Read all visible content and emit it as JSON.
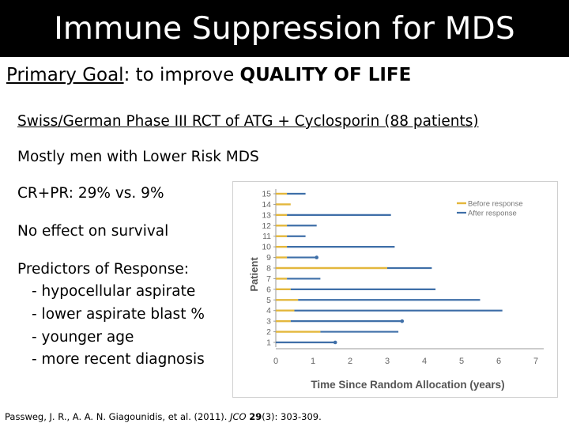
{
  "slide": {
    "title": "Immune Suppression for MDS",
    "goal_label": "Primary Goal",
    "goal_text": ": to improve ",
    "goal_emphasis": "QUALITY OF LIFE",
    "bullets": [
      "Swiss/German Phase III RCT of ATG + Cyclosporin (88 patients)",
      "Mostly men with Lower Risk MDS",
      "CR+PR: 29% vs. 9%",
      "No effect on survival",
      "Predictors of Response:"
    ],
    "sub_bullets": [
      "- hypocellular aspirate",
      "- lower aspirate blast %",
      "- younger age",
      "- more recent diagnosis"
    ],
    "citation": {
      "authors": "Passweg, J. R., A. A. N. Giagounidis, et al. (2011). ",
      "journal": "JCO",
      "volume": "29",
      "pages": "(3): 303-309."
    }
  },
  "colors": {
    "before": "#E3B73C",
    "after": "#3F6FA8",
    "title_bg": "#000000"
  },
  "chart_data": {
    "type": "bar",
    "orientation": "horizontal-swimmer",
    "xlabel": "Time Since Random Allocation (years)",
    "ylabel": "Patient",
    "xlim": [
      0,
      7
    ],
    "xticks": [
      "0",
      "1",
      "2",
      "3",
      "4",
      "5",
      "6",
      "7"
    ],
    "legend": [
      "Before response",
      "After response"
    ],
    "legend_position": "top-right",
    "patients": [
      {
        "id": "1",
        "before": 0.0,
        "end": 1.6,
        "marker": true
      },
      {
        "id": "2",
        "before": 1.2,
        "end": 3.3,
        "marker": false
      },
      {
        "id": "3",
        "before": 0.4,
        "end": 3.4,
        "marker": true
      },
      {
        "id": "4",
        "before": 0.5,
        "end": 6.1,
        "marker": false
      },
      {
        "id": "5",
        "before": 0.6,
        "end": 5.5,
        "marker": false
      },
      {
        "id": "6",
        "before": 0.4,
        "end": 4.3,
        "marker": false
      },
      {
        "id": "7",
        "before": 0.3,
        "end": 1.2,
        "marker": false
      },
      {
        "id": "8",
        "before": 3.0,
        "end": 4.2,
        "marker": false
      },
      {
        "id": "9",
        "before": 0.3,
        "end": 1.1,
        "marker": true
      },
      {
        "id": "10",
        "before": 0.3,
        "end": 3.2,
        "marker": false
      },
      {
        "id": "11",
        "before": 0.3,
        "end": 0.8,
        "marker": false
      },
      {
        "id": "12",
        "before": 0.3,
        "end": 1.1,
        "marker": false
      },
      {
        "id": "13",
        "before": 0.3,
        "end": 3.1,
        "marker": false
      },
      {
        "id": "14",
        "before": 0.4,
        "end": 0.4,
        "marker": false
      },
      {
        "id": "15",
        "before": 0.3,
        "end": 0.8,
        "marker": false
      }
    ]
  }
}
